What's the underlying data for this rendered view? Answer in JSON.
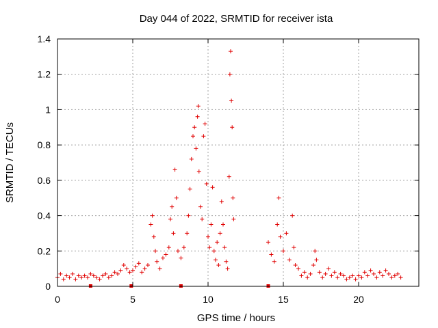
{
  "chart_data": {
    "type": "scatter",
    "title": "Day 044 of 2022, SRMTID for receiver ista",
    "xlabel": "GPS time / hours",
    "ylabel": "SRMTID / TECUs",
    "xlim": [
      0,
      24
    ],
    "ylim": [
      0,
      1.4
    ],
    "xticks": [
      0,
      5,
      10,
      15,
      20
    ],
    "yticks": [
      0,
      0.2,
      0.4,
      0.6,
      0.8,
      1,
      1.2,
      1.4
    ],
    "xtick_labels": [
      "0",
      "5",
      "10",
      "15",
      "20"
    ],
    "ytick_labels": [
      "0",
      "0.2",
      "0.4",
      "0.6",
      "0.8",
      "1",
      "1.2",
      "1.4"
    ],
    "grid": true,
    "marker": "plus",
    "color": "#e00000",
    "series": [
      {
        "name": "SRMTID",
        "points": [
          [
            0.0,
            0.05
          ],
          [
            0.2,
            0.07
          ],
          [
            0.4,
            0.04
          ],
          [
            0.6,
            0.06
          ],
          [
            0.8,
            0.05
          ],
          [
            1.0,
            0.07
          ],
          [
            1.2,
            0.04
          ],
          [
            1.4,
            0.06
          ],
          [
            1.6,
            0.05
          ],
          [
            1.8,
            0.06
          ],
          [
            2.0,
            0.05
          ],
          [
            2.2,
            0.07
          ],
          [
            2.4,
            0.06
          ],
          [
            2.6,
            0.05
          ],
          [
            2.8,
            0.04
          ],
          [
            3.0,
            0.06
          ],
          [
            3.2,
            0.07
          ],
          [
            3.4,
            0.05
          ],
          [
            3.6,
            0.06
          ],
          [
            3.8,
            0.08
          ],
          [
            4.0,
            0.07
          ],
          [
            4.2,
            0.09
          ],
          [
            4.4,
            0.12
          ],
          [
            4.6,
            0.1
          ],
          [
            4.8,
            0.08
          ],
          [
            5.0,
            0.09
          ],
          [
            5.2,
            0.11
          ],
          [
            5.4,
            0.13
          ],
          [
            5.6,
            0.08
          ],
          [
            5.8,
            0.1
          ],
          [
            6.0,
            0.12
          ],
          [
            6.2,
            0.35
          ],
          [
            6.3,
            0.4
          ],
          [
            6.4,
            0.28
          ],
          [
            6.5,
            0.2
          ],
          [
            6.6,
            0.14
          ],
          [
            6.8,
            0.1
          ],
          [
            7.0,
            0.16
          ],
          [
            7.2,
            0.18
          ],
          [
            7.4,
            0.22
          ],
          [
            7.5,
            0.38
          ],
          [
            7.6,
            0.45
          ],
          [
            7.7,
            0.3
          ],
          [
            7.8,
            0.66
          ],
          [
            7.9,
            0.5
          ],
          [
            8.0,
            0.2
          ],
          [
            8.2,
            0.16
          ],
          [
            8.4,
            0.22
          ],
          [
            8.6,
            0.3
          ],
          [
            8.7,
            0.4
          ],
          [
            8.8,
            0.55
          ],
          [
            8.9,
            0.72
          ],
          [
            9.0,
            0.85
          ],
          [
            9.1,
            0.9
          ],
          [
            9.2,
            0.78
          ],
          [
            9.3,
            0.96
          ],
          [
            9.35,
            1.02
          ],
          [
            9.4,
            0.65
          ],
          [
            9.5,
            0.45
          ],
          [
            9.6,
            0.38
          ],
          [
            9.7,
            0.85
          ],
          [
            9.8,
            0.92
          ],
          [
            9.9,
            0.58
          ],
          [
            10.0,
            0.28
          ],
          [
            10.1,
            0.22
          ],
          [
            10.2,
            0.35
          ],
          [
            10.3,
            0.56
          ],
          [
            10.4,
            0.2
          ],
          [
            10.5,
            0.15
          ],
          [
            10.6,
            0.25
          ],
          [
            10.7,
            0.12
          ],
          [
            10.8,
            0.3
          ],
          [
            10.9,
            0.48
          ],
          [
            11.0,
            0.35
          ],
          [
            11.1,
            0.22
          ],
          [
            11.2,
            0.14
          ],
          [
            11.3,
            0.1
          ],
          [
            11.4,
            0.62
          ],
          [
            11.45,
            1.2
          ],
          [
            11.5,
            1.33
          ],
          [
            11.55,
            1.05
          ],
          [
            11.6,
            0.9
          ],
          [
            11.65,
            0.5
          ],
          [
            11.7,
            0.38
          ],
          [
            14.0,
            0.25
          ],
          [
            14.2,
            0.18
          ],
          [
            14.4,
            0.14
          ],
          [
            14.6,
            0.35
          ],
          [
            14.7,
            0.5
          ],
          [
            14.8,
            0.28
          ],
          [
            15.0,
            0.2
          ],
          [
            15.2,
            0.3
          ],
          [
            15.4,
            0.15
          ],
          [
            15.6,
            0.4
          ],
          [
            15.7,
            0.22
          ],
          [
            15.8,
            0.12
          ],
          [
            16.0,
            0.1
          ],
          [
            16.2,
            0.06
          ],
          [
            16.4,
            0.08
          ],
          [
            16.6,
            0.05
          ],
          [
            16.8,
            0.07
          ],
          [
            17.0,
            0.12
          ],
          [
            17.1,
            0.2
          ],
          [
            17.2,
            0.15
          ],
          [
            17.4,
            0.08
          ],
          [
            17.6,
            0.05
          ],
          [
            17.8,
            0.07
          ],
          [
            18.0,
            0.1
          ],
          [
            18.2,
            0.06
          ],
          [
            18.4,
            0.08
          ],
          [
            18.6,
            0.05
          ],
          [
            18.8,
            0.07
          ],
          [
            19.0,
            0.06
          ],
          [
            19.2,
            0.04
          ],
          [
            19.4,
            0.05
          ],
          [
            19.6,
            0.06
          ],
          [
            19.8,
            0.04
          ],
          [
            20.0,
            0.06
          ],
          [
            20.2,
            0.05
          ],
          [
            20.4,
            0.08
          ],
          [
            20.6,
            0.06
          ],
          [
            20.8,
            0.09
          ],
          [
            21.0,
            0.07
          ],
          [
            21.2,
            0.05
          ],
          [
            21.4,
            0.08
          ],
          [
            21.6,
            0.06
          ],
          [
            21.8,
            0.09
          ],
          [
            22.0,
            0.07
          ],
          [
            22.2,
            0.05
          ],
          [
            22.4,
            0.06
          ],
          [
            22.6,
            0.07
          ],
          [
            22.8,
            0.05
          ]
        ]
      }
    ],
    "baseline_markers": [
      2.2,
      4.9,
      8.2,
      14.0
    ]
  }
}
